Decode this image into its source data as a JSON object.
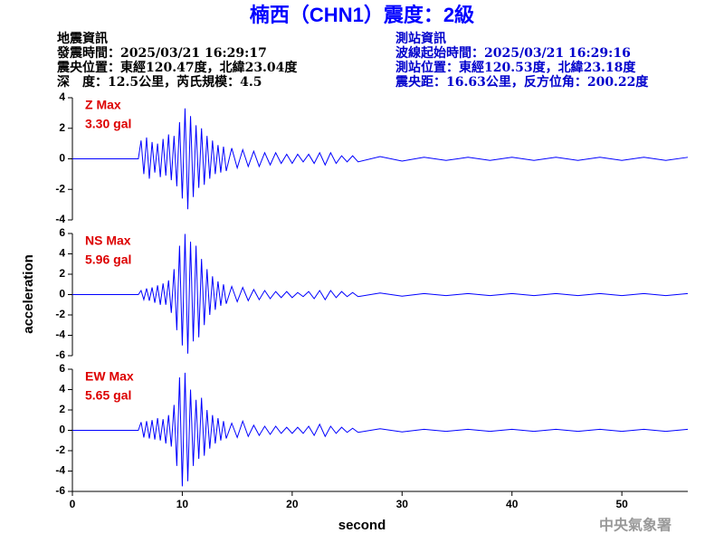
{
  "title": "楠西（CHN1）震度：2級",
  "event_info": [
    "地震資訊",
    "發震時間：2025/03/21 16:29:17",
    "震央位置：東經120.47度，北緯23.04度",
    "深　度：12.5公里，芮氏規模：4.5"
  ],
  "station_info": [
    "測站資訊",
    "波線起始時間：2025/03/21 16:29:16",
    "測站位置：東經120.53度，北緯23.18度",
    "震央距：16.63公里，反方位角：200.22度"
  ],
  "y_label": "acceleration",
  "x_label": "second",
  "footer": "中央氣象署",
  "chart_data": [
    {
      "type": "line",
      "annotation": "Z Max",
      "max_label": "3.30 gal",
      "color": "#0000ff",
      "xlim": [
        0,
        56
      ],
      "ylim": [
        -4,
        4
      ],
      "yticks": [
        -4,
        -2,
        0,
        2,
        4
      ],
      "x": [
        0,
        5.5,
        6,
        6.25,
        6.5,
        6.75,
        7,
        7.25,
        7.5,
        7.75,
        8,
        8.25,
        8.5,
        8.75,
        9,
        9.25,
        9.5,
        9.75,
        10,
        10.25,
        10.5,
        10.75,
        11,
        11.25,
        11.5,
        11.75,
        12,
        12.25,
        12.5,
        12.75,
        13,
        13.25,
        13.5,
        13.75,
        14,
        14.5,
        15,
        15.5,
        16,
        16.5,
        17,
        17.5,
        18,
        18.5,
        19,
        19.5,
        20,
        20.5,
        21,
        21.5,
        22,
        22.5,
        23,
        23.5,
        24,
        24.5,
        25,
        25.5,
        26,
        28,
        30,
        32,
        34,
        36,
        38,
        40,
        42,
        44,
        46,
        48,
        50,
        52,
        54,
        56
      ],
      "values": [
        0,
        0,
        0,
        1.2,
        -1.0,
        1.4,
        -1.3,
        1.1,
        -0.9,
        1.0,
        -1.2,
        1.3,
        -1.1,
        1.6,
        -1.4,
        1.5,
        -1.8,
        2.4,
        -2.6,
        3.3,
        -3.3,
        2.8,
        -2.5,
        2.2,
        -1.9,
        2.0,
        -1.7,
        1.5,
        -1.3,
        1.2,
        -1.0,
        0.9,
        -0.9,
        0.8,
        -0.8,
        0.7,
        -0.6,
        0.6,
        -0.5,
        0.5,
        -0.5,
        0.4,
        -0.4,
        0.4,
        -0.3,
        0.3,
        -0.3,
        0.3,
        -0.2,
        0.3,
        -0.3,
        0.4,
        -0.4,
        0.4,
        -0.3,
        0.2,
        -0.2,
        0.2,
        -0.2,
        0.15,
        -0.15,
        0.1,
        -0.1,
        0.1,
        -0.1,
        0.1,
        -0.1,
        0.1,
        -0.1,
        0.1,
        -0.1,
        0.1,
        -0.1,
        0.1
      ]
    },
    {
      "type": "line",
      "annotation": "NS Max",
      "max_label": "5.96 gal",
      "color": "#0000ff",
      "xlim": [
        0,
        56
      ],
      "ylim": [
        -6,
        6
      ],
      "yticks": [
        -6,
        -4,
        -2,
        0,
        2,
        4,
        6
      ],
      "x": [
        0,
        5.5,
        6,
        6.25,
        6.5,
        6.75,
        7,
        7.25,
        7.5,
        7.75,
        8,
        8.25,
        8.5,
        8.75,
        9,
        9.25,
        9.5,
        9.75,
        10,
        10.25,
        10.5,
        10.75,
        11,
        11.25,
        11.5,
        11.75,
        12,
        12.25,
        12.5,
        12.75,
        13,
        13.25,
        13.5,
        13.75,
        14,
        14.5,
        15,
        15.5,
        16,
        16.5,
        17,
        17.5,
        18,
        18.5,
        19,
        19.5,
        20,
        20.5,
        21,
        21.5,
        22,
        22.5,
        23,
        23.5,
        24,
        24.5,
        25,
        25.5,
        26,
        28,
        30,
        32,
        34,
        36,
        38,
        40,
        42,
        44,
        46,
        48,
        50,
        52,
        54,
        56
      ],
      "values": [
        0,
        0,
        0,
        0.4,
        -0.5,
        0.6,
        -0.6,
        0.7,
        -0.8,
        0.9,
        -1.0,
        1.1,
        -1.0,
        1.4,
        -1.8,
        2.5,
        -3.5,
        4.8,
        -5.0,
        5.96,
        -5.8,
        5.2,
        -4.6,
        4.8,
        -4.2,
        3.5,
        -3.0,
        2.5,
        -2.0,
        1.8,
        -1.5,
        1.3,
        -1.1,
        1.0,
        -0.9,
        0.8,
        -0.7,
        0.7,
        -0.6,
        0.5,
        -0.5,
        0.4,
        -0.4,
        0.3,
        -0.3,
        0.3,
        -0.3,
        0.2,
        -0.2,
        0.3,
        -0.4,
        0.4,
        -0.5,
        0.4,
        -0.3,
        0.3,
        -0.2,
        0.2,
        -0.2,
        0.15,
        -0.15,
        0.1,
        -0.1,
        0.1,
        -0.1,
        0.1,
        -0.1,
        0.1,
        -0.1,
        0.1,
        -0.1,
        0.1,
        -0.1,
        0.1
      ]
    },
    {
      "type": "line",
      "annotation": "EW Max",
      "max_label": "5.65 gal",
      "color": "#0000ff",
      "xlim": [
        0,
        56
      ],
      "ylim": [
        -6,
        6
      ],
      "yticks": [
        -6,
        -4,
        -2,
        0,
        2,
        4,
        6
      ],
      "xticks": [
        0,
        10,
        20,
        30,
        40,
        50
      ],
      "x": [
        0,
        5.5,
        6,
        6.25,
        6.5,
        6.75,
        7,
        7.25,
        7.5,
        7.75,
        8,
        8.25,
        8.5,
        8.75,
        9,
        9.25,
        9.5,
        9.75,
        10,
        10.25,
        10.5,
        10.75,
        11,
        11.25,
        11.5,
        11.75,
        12,
        12.25,
        12.5,
        12.75,
        13,
        13.25,
        13.5,
        13.75,
        14,
        14.5,
        15,
        15.5,
        16,
        16.5,
        17,
        17.5,
        18,
        18.5,
        19,
        19.5,
        20,
        20.5,
        21,
        21.5,
        22,
        22.5,
        23,
        23.5,
        24,
        24.5,
        25,
        25.5,
        26,
        28,
        30,
        32,
        34,
        36,
        38,
        40,
        42,
        44,
        46,
        48,
        50,
        52,
        54,
        56
      ],
      "values": [
        0,
        0,
        0,
        0.8,
        -0.7,
        0.9,
        -0.8,
        1.0,
        -0.9,
        1.2,
        -1.0,
        1.1,
        -1.3,
        1.5,
        -1.6,
        2.5,
        -3.5,
        5.2,
        -5.5,
        5.65,
        -5.0,
        4.0,
        -3.5,
        3.0,
        -2.8,
        3.2,
        -2.5,
        2.0,
        -1.8,
        1.5,
        -1.3,
        1.2,
        -1.0,
        0.9,
        -0.8,
        0.7,
        -0.7,
        0.9,
        -0.6,
        0.5,
        -0.5,
        0.4,
        -0.4,
        0.4,
        -0.3,
        0.3,
        -0.3,
        0.3,
        -0.3,
        0.4,
        -0.5,
        0.6,
        -0.6,
        0.4,
        -0.3,
        0.3,
        -0.2,
        0.2,
        -0.2,
        0.15,
        -0.15,
        0.1,
        -0.1,
        0.1,
        -0.1,
        0.1,
        -0.1,
        0.1,
        -0.1,
        0.1,
        -0.1,
        0.1,
        -0.1,
        0.1
      ]
    }
  ]
}
